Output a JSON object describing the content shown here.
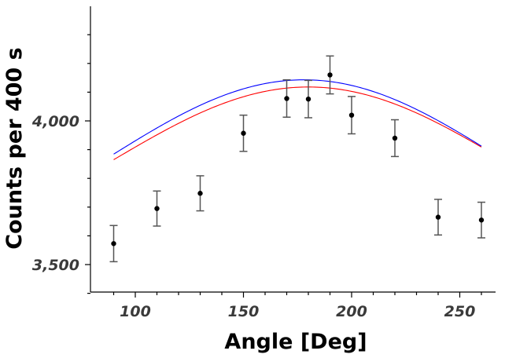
{
  "chart_data": {
    "type": "scatter",
    "title": "",
    "xlabel": "Angle [Deg]",
    "ylabel": "Counts per 400 s",
    "xlim": [
      80,
      265
    ],
    "ylim": [
      3400,
      4400
    ],
    "x_ticks": [
      100,
      150,
      200,
      250
    ],
    "x_tick_labels": [
      "100",
      "150",
      "200",
      "250"
    ],
    "y_ticks": [
      3500,
      4000
    ],
    "y_tick_labels": [
      "3,500",
      "4,000"
    ],
    "grid": false,
    "legend": "none",
    "series": [
      {
        "kind": "points-with-error-bars",
        "color": "#000000",
        "x": [
          90,
          110,
          130,
          150,
          170,
          180,
          190,
          200,
          220,
          240,
          260
        ],
        "y": [
          3573,
          3695,
          3748,
          3957,
          4078,
          4076,
          4160,
          4020,
          3940,
          3665,
          3655
        ],
        "err": [
          63,
          61,
          61,
          63,
          65,
          65,
          66,
          65,
          64,
          62,
          62
        ]
      },
      {
        "kind": "fit-curve",
        "color": "#ff0000",
        "model": "cosine",
        "params": {
          "center": 180,
          "baseline": 3865,
          "amplitude": 253,
          "xmin": 90,
          "xmax": 260
        }
      },
      {
        "kind": "fit-curve",
        "color": "#0000ff",
        "model": "cosine",
        "params": {
          "center": 178,
          "baseline": 3875,
          "amplitude": 268,
          "xmin": 90,
          "xmax": 260
        }
      }
    ]
  }
}
